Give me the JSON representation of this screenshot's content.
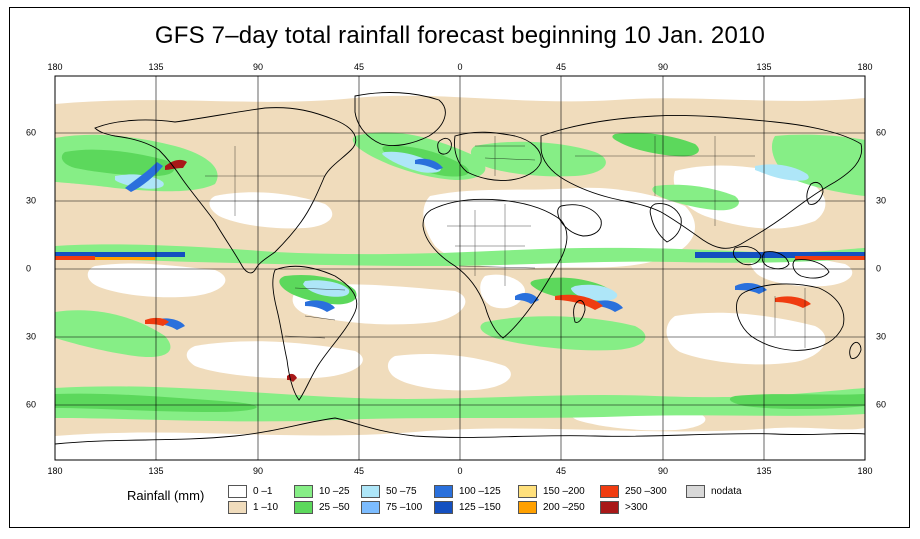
{
  "title": "GFS 7–day total rainfall forecast beginning 10 Jan. 2010",
  "map": {
    "projection": "equirectangular",
    "lon_range": [
      -180,
      180
    ],
    "lat_range": [
      -85,
      85
    ]
  },
  "axes": {
    "top_lon_labels": [
      "180",
      "135",
      "90",
      "45",
      "0",
      "45",
      "90",
      "135",
      "180"
    ],
    "bottom_lon_labels": [
      "180",
      "135",
      "90",
      "45",
      "0",
      "45",
      "90",
      "135",
      "180"
    ],
    "left_lat_labels": [
      "60",
      "30",
      "0",
      "30",
      "60"
    ],
    "right_lat_labels": [
      "60",
      "30",
      "0",
      "30",
      "60"
    ],
    "lon_values": [
      -180,
      -135,
      -90,
      -45,
      0,
      45,
      90,
      135,
      180
    ],
    "lat_values": [
      60,
      30,
      0,
      -30,
      -60
    ]
  },
  "legend": {
    "title": "Rainfall (mm)",
    "entries": [
      {
        "label": "0 –1",
        "color": "#ffffff"
      },
      {
        "label": "1 –10",
        "color": "#f0dcbc"
      },
      {
        "label": "10 –25",
        "color": "#86ee86"
      },
      {
        "label": "25 –50",
        "color": "#5cd85c"
      },
      {
        "label": "50 –75",
        "color": "#aee6f8"
      },
      {
        "label": "75 –100",
        "color": "#7cbcff"
      },
      {
        "label": "100 –125",
        "color": "#2a70dc"
      },
      {
        "label": "125 –150",
        "color": "#1450c0"
      },
      {
        "label": "150 –200",
        "color": "#ffe07c"
      },
      {
        "label": "200 –250",
        "color": "#ffa000"
      },
      {
        "label": "250 –300",
        "color": "#f03c10"
      },
      {
        "label": ">300",
        "color": "#a81818"
      },
      {
        "label": "nodata",
        "color": "#d8d8d8"
      }
    ]
  }
}
